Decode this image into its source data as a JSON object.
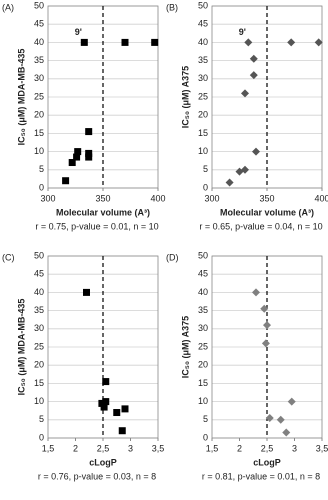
{
  "chart_data": [
    {
      "type": "scatter",
      "panel": "(A)",
      "ylabel": "IC₅₀ (μM) MDA-MB-435",
      "xlabel": "Molecular volume (A³)",
      "footer": "r = 0.75, p-value = 0.01, n = 10",
      "x": [
        333,
        370,
        397,
        316,
        322,
        326,
        327,
        337,
        337,
        337
      ],
      "values": [
        40,
        40,
        40,
        2,
        7,
        8.5,
        10,
        15.5,
        9.5,
        8.5
      ],
      "color": "#000000",
      "marker": "square",
      "xlim": [
        300,
        400
      ],
      "xticks": [
        300,
        350,
        400
      ],
      "ylim": [
        0,
        50
      ],
      "yticks": [
        0,
        5,
        10,
        15,
        20,
        25,
        30,
        35,
        40,
        45,
        50
      ],
      "grid": true,
      "vline": 350,
      "annotations": [
        {
          "text": "9'",
          "x": 333,
          "y": 40
        }
      ]
    },
    {
      "type": "scatter",
      "panel": "(B)",
      "ylabel": "IC₅₀ (μM) A375",
      "xlabel": "Molecular volume (A³)",
      "footer": "r = 0.65, p-value = 0.04, n = 10",
      "x": [
        316,
        325,
        330,
        330,
        333,
        338,
        338,
        340,
        372,
        397
      ],
      "values": [
        1.5,
        4.5,
        5,
        26,
        40,
        35.5,
        31,
        10,
        40,
        40
      ],
      "color": "#555555",
      "marker": "diamond",
      "xlim": [
        300,
        400
      ],
      "xticks": [
        300,
        350,
        400
      ],
      "ylim": [
        0,
        50
      ],
      "yticks": [
        0,
        5,
        10,
        15,
        20,
        25,
        30,
        35,
        40,
        45,
        50
      ],
      "grid": true,
      "vline": 350,
      "annotations": [
        {
          "text": "9'",
          "x": 333,
          "y": 40
        }
      ]
    },
    {
      "type": "scatter",
      "panel": "(C)",
      "ylabel": "IC₅₀ (μM) MDA-MB-435",
      "xlabel": "cLogP",
      "footer": "r = 0.76, p-value = 0.03, n = 8",
      "x": [
        2.2,
        2.55,
        2.48,
        2.52,
        2.55,
        2.75,
        2.9,
        2.85
      ],
      "values": [
        40,
        15.5,
        9.5,
        8.5,
        10,
        7,
        8,
        2
      ],
      "color": "#000000",
      "marker": "square",
      "xlim": [
        1.5,
        3.5
      ],
      "xticks": [
        {
          "value": 1.5,
          "label": "1,5"
        },
        2,
        {
          "value": 2.5,
          "label": "2,5"
        },
        3,
        {
          "value": 3.5,
          "label": "3,5"
        }
      ],
      "ylim": [
        0,
        50
      ],
      "yticks": [
        0,
        5,
        10,
        15,
        20,
        25,
        30,
        35,
        40,
        45,
        50
      ],
      "grid": true,
      "vline": 2.5
    },
    {
      "type": "scatter",
      "panel": "(D)",
      "ylabel": "IC₅₀ (μM) A375",
      "xlabel": "cLogP",
      "footer": "r = 0.81, p-value = 0.01, n = 8",
      "x": [
        2.3,
        2.45,
        2.5,
        2.48,
        2.55,
        2.75,
        2.95,
        2.85
      ],
      "values": [
        40,
        35.5,
        31,
        26,
        5.5,
        5,
        10,
        1.5
      ],
      "color": "#808080",
      "marker": "diamond",
      "xlim": [
        1.5,
        3.5
      ],
      "xticks": [
        {
          "value": 1.5,
          "label": "1,5"
        },
        2,
        {
          "value": 2.5,
          "label": "2,5"
        },
        3,
        {
          "value": 3.5,
          "label": "3,5"
        }
      ],
      "ylim": [
        0,
        50
      ],
      "yticks": [
        0,
        5,
        10,
        15,
        20,
        25,
        30,
        35,
        40,
        45,
        50
      ],
      "grid": true,
      "vline": 2.5
    }
  ]
}
